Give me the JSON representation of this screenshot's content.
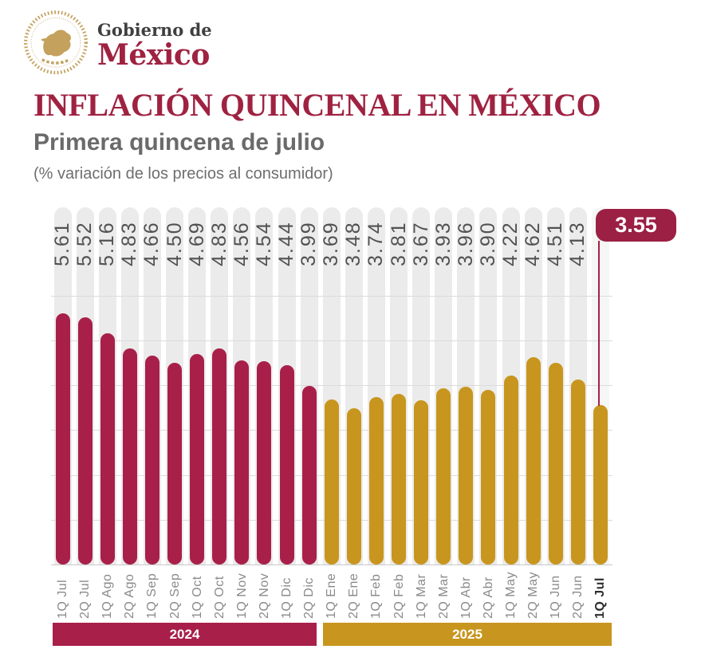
{
  "header": {
    "seal_icon": "mexico-coat-of-arms",
    "seal_color": "#C4A15C",
    "logo_line1": "Gobierno de",
    "logo_line2": "México",
    "logo_line2_color": "#9F2241"
  },
  "titles": {
    "title": "INFLACIÓN QUINCENAL EN MÉXICO",
    "title_color": "#9F2241",
    "subtitle": "Primera quincena de julio",
    "caption": "(% variación de los precios al consumidor)"
  },
  "chart_data": {
    "type": "bar",
    "title": "Inflación quincenal en México",
    "subtitle": "Primera quincena de julio",
    "ylabel": "% variación de los precios al consumidor",
    "xlabel": "",
    "ylim": [
      0,
      6
    ],
    "grid": true,
    "gridline_step": 1,
    "legend_position": "bottom",
    "categories": [
      "1Q Jul",
      "2Q Jul",
      "1Q Ago",
      "2Q Ago",
      "1Q Sep",
      "2Q Sep",
      "1Q Oct",
      "2Q Oct",
      "1Q Nov",
      "2Q Nov",
      "1Q Dic",
      "2Q Dic",
      "1Q Ene",
      "2Q Ene",
      "1Q Feb",
      "2Q Feb",
      "1Q Mar",
      "2Q Mar",
      "1Q Abr",
      "2Q Abr",
      "1Q May",
      "2Q May",
      "1Q Jun",
      "2Q Jun",
      "1Q Jul"
    ],
    "values": [
      5.61,
      5.52,
      5.16,
      4.83,
      4.66,
      4.5,
      4.69,
      4.83,
      4.56,
      4.54,
      4.44,
      3.99,
      3.69,
      3.48,
      3.74,
      3.81,
      3.67,
      3.93,
      3.96,
      3.9,
      4.22,
      4.62,
      4.51,
      4.13,
      3.55
    ],
    "groups": [
      {
        "year": "2024",
        "color": "#A82049",
        "from": 0,
        "to": 11
      },
      {
        "year": "2025",
        "color": "#C8961E",
        "from": 12,
        "to": 24
      }
    ],
    "highlight": {
      "index": 24,
      "label": "3.55",
      "box_color": "#9C2044",
      "line_color": "#A82049"
    },
    "colors": {
      "track": "#ebebeb",
      "highlight_track": "#f4f7f6",
      "gridline": "#dbdbdb",
      "value_label": "#525252",
      "tick_label": "#8a8a8a",
      "highlight_tick_label": "#2e2e2e"
    }
  }
}
